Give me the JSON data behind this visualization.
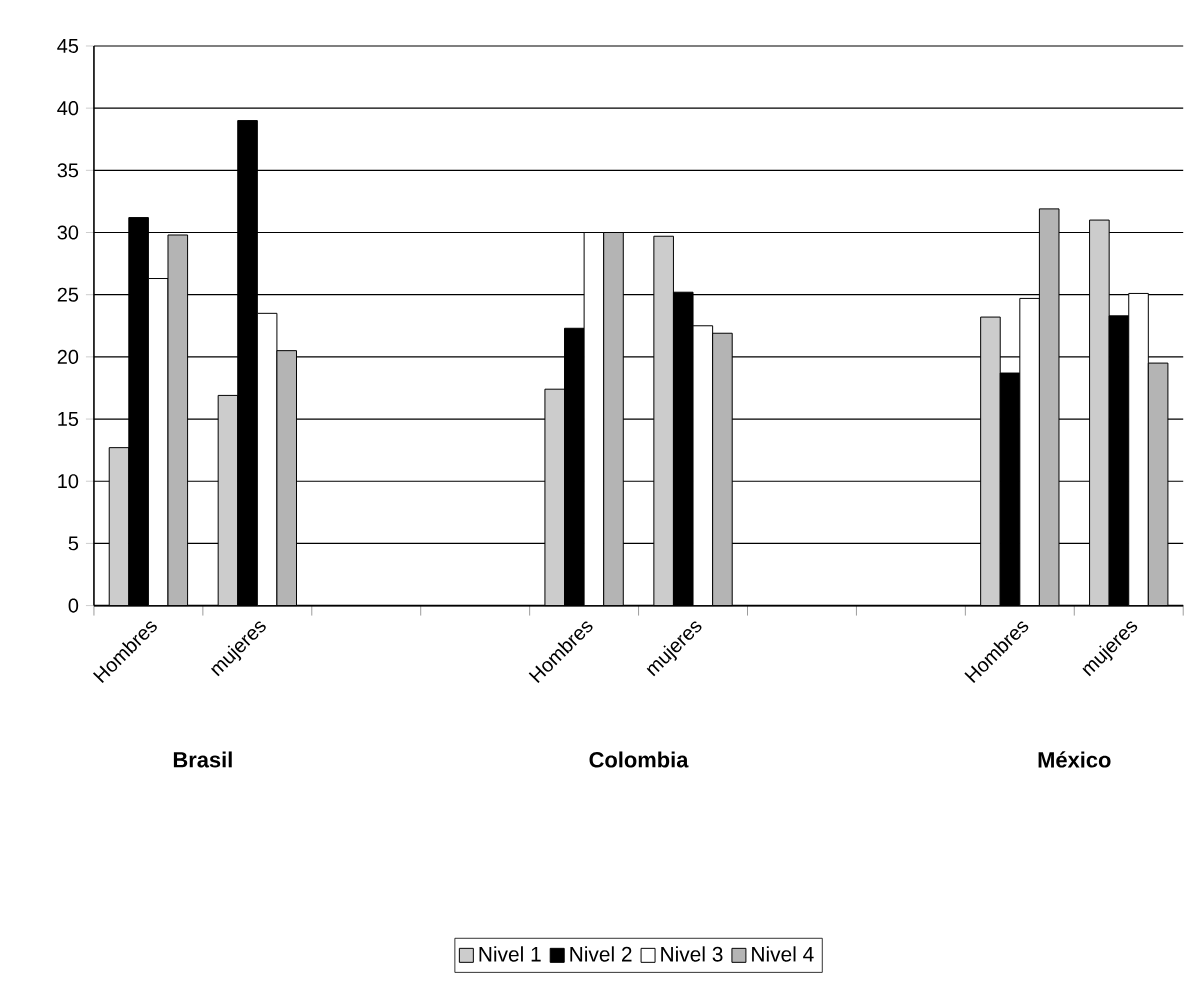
{
  "chart_data": {
    "type": "bar",
    "categories": [
      "Hombres",
      "mujeres",
      null,
      null,
      "Hombres",
      "mujeres",
      null,
      null,
      "Hombres",
      "mujeres"
    ],
    "series": [
      {
        "name": "Nivel 1",
        "color": "#cccccc",
        "values": [
          12.7,
          16.9,
          null,
          null,
          17.4,
          29.7,
          null,
          null,
          23.2,
          31.0
        ]
      },
      {
        "name": "Nivel 2",
        "color": "#000000",
        "values": [
          31.2,
          39.0,
          null,
          null,
          22.3,
          25.2,
          null,
          null,
          18.7,
          23.3
        ]
      },
      {
        "name": "Nivel 3",
        "color": "#ffffff",
        "values": [
          26.3,
          23.5,
          null,
          null,
          30.0,
          22.5,
          null,
          null,
          24.7,
          25.1
        ]
      },
      {
        "name": "Nivel 4",
        "color": "#b4b4b4",
        "values": [
          29.8,
          20.5,
          null,
          null,
          30.0,
          21.9,
          null,
          null,
          31.9,
          19.5
        ]
      }
    ],
    "annotations": [
      "**Brasil**",
      "**Colombia**",
      "**México**"
    ],
    "ylim": [
      0,
      45
    ],
    "yticks": [
      0,
      5,
      10,
      15,
      20,
      25,
      30,
      35,
      40,
      45
    ],
    "grid": "y",
    "legend": "bottom"
  }
}
